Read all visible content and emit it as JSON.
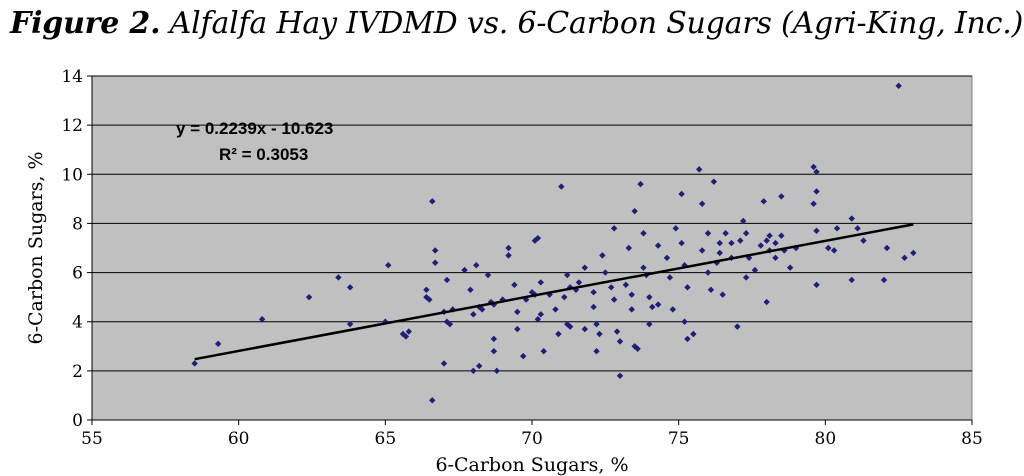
{
  "figure": {
    "title_lead": "Figure 2.",
    "title_rest": " Alfalfa Hay IVDMD vs. 6-Carbon Sugars (Agri-King, Inc.)"
  },
  "chart_data": {
    "type": "scatter",
    "xlabel": "6-Carbon Sugars, %",
    "ylabel": "6-Carbon Sugars, %",
    "xlim": [
      55,
      85
    ],
    "ylim": [
      0,
      14
    ],
    "xticks": [
      55,
      60,
      65,
      70,
      75,
      80,
      85
    ],
    "yticks": [
      0,
      2,
      4,
      6,
      8,
      10,
      12,
      14
    ],
    "grid": "horizontal",
    "background": "#c0c0c0",
    "marker_color": "#1f1f7a",
    "trendline": {
      "equation": "y = 0.2239x - 10.623",
      "r_squared": "R² = 0.3053",
      "slope": 0.2239,
      "intercept": -10.623,
      "x_range": [
        58.5,
        83
      ]
    },
    "points": [
      [
        58.5,
        2.3
      ],
      [
        59.3,
        3.1
      ],
      [
        60.8,
        4.1
      ],
      [
        62.4,
        5.0
      ],
      [
        63.4,
        5.8
      ],
      [
        63.8,
        5.4
      ],
      [
        63.8,
        3.9
      ],
      [
        65.1,
        6.3
      ],
      [
        65,
        4.0
      ],
      [
        65.6,
        3.5
      ],
      [
        65.7,
        3.4
      ],
      [
        65.8,
        3.6
      ],
      [
        66.4,
        5.3
      ],
      [
        66.4,
        5.0
      ],
      [
        66.5,
        4.9
      ],
      [
        66.7,
        6.9
      ],
      [
        66.7,
        6.4
      ],
      [
        66.6,
        8.9
      ],
      [
        66.6,
        0.8
      ],
      [
        67,
        4.4
      ],
      [
        67.1,
        4.0
      ],
      [
        67.2,
        3.9
      ],
      [
        67.1,
        5.7
      ],
      [
        67,
        2.3
      ],
      [
        67.3,
        4.5
      ],
      [
        67.7,
        6.1
      ],
      [
        67.9,
        5.3
      ],
      [
        68.1,
        6.3
      ],
      [
        68.2,
        4.6
      ],
      [
        68.3,
        4.5
      ],
      [
        68,
        4.3
      ],
      [
        68,
        2.0
      ],
      [
        68.2,
        2.2
      ],
      [
        68.5,
        5.9
      ],
      [
        68.6,
        4.8
      ],
      [
        68.7,
        4.7
      ],
      [
        68.7,
        3.3
      ],
      [
        68.7,
        2.8
      ],
      [
        68.8,
        2.0
      ],
      [
        69,
        4.9
      ],
      [
        69.2,
        7.0
      ],
      [
        69.2,
        6.7
      ],
      [
        69.4,
        5.5
      ],
      [
        69.5,
        4.4
      ],
      [
        69.5,
        3.7
      ],
      [
        69.7,
        2.6
      ],
      [
        69.8,
        4.9
      ],
      [
        70,
        5.2
      ],
      [
        70.1,
        5.1
      ],
      [
        70.1,
        7.3
      ],
      [
        70.2,
        7.4
      ],
      [
        70.3,
        5.6
      ],
      [
        70.3,
        4.3
      ],
      [
        70.2,
        4.1
      ],
      [
        70.4,
        2.8
      ],
      [
        70.6,
        5.1
      ],
      [
        70.8,
        4.5
      ],
      [
        70.9,
        3.5
      ],
      [
        71,
        9.5
      ],
      [
        71.1,
        5.0
      ],
      [
        71.2,
        3.9
      ],
      [
        71.3,
        3.8
      ],
      [
        71.2,
        5.9
      ],
      [
        71.3,
        5.4
      ],
      [
        71.5,
        5.3
      ],
      [
        71.6,
        5.6
      ],
      [
        71.8,
        3.7
      ],
      [
        71.8,
        6.2
      ],
      [
        72.1,
        5.2
      ],
      [
        72.1,
        4.6
      ],
      [
        72.2,
        3.9
      ],
      [
        72.3,
        3.5
      ],
      [
        72.2,
        2.8
      ],
      [
        72.4,
        6.7
      ],
      [
        72.5,
        6.0
      ],
      [
        72.7,
        5.4
      ],
      [
        72.8,
        7.8
      ],
      [
        72.8,
        4.9
      ],
      [
        72.9,
        3.6
      ],
      [
        73,
        3.2
      ],
      [
        73,
        1.8
      ],
      [
        73.2,
        5.5
      ],
      [
        73.3,
        7.0
      ],
      [
        73.4,
        5.1
      ],
      [
        73.4,
        4.5
      ],
      [
        73.5,
        8.5
      ],
      [
        73.5,
        3.0
      ],
      [
        73.6,
        2.9
      ],
      [
        73.7,
        9.6
      ],
      [
        73.8,
        7.6
      ],
      [
        73.8,
        6.2
      ],
      [
        73.9,
        5.9
      ],
      [
        74,
        5.0
      ],
      [
        74.1,
        4.6
      ],
      [
        74,
        3.9
      ],
      [
        74.3,
        7.1
      ],
      [
        74.3,
        4.7
      ],
      [
        74.6,
        6.6
      ],
      [
        74.7,
        5.8
      ],
      [
        74.8,
        4.5
      ],
      [
        74.9,
        7.8
      ],
      [
        75.1,
        9.2
      ],
      [
        75.1,
        7.2
      ],
      [
        75.2,
        6.3
      ],
      [
        75.3,
        5.4
      ],
      [
        75.2,
        4.0
      ],
      [
        75.3,
        3.3
      ],
      [
        75.5,
        3.5
      ],
      [
        75.7,
        10.2
      ],
      [
        75.8,
        8.8
      ],
      [
        75.8,
        6.9
      ],
      [
        76,
        7.6
      ],
      [
        76,
        6.0
      ],
      [
        76.1,
        5.3
      ],
      [
        76.2,
        9.7
      ],
      [
        76.4,
        7.2
      ],
      [
        76.4,
        6.8
      ],
      [
        76.3,
        6.4
      ],
      [
        76.5,
        5.1
      ],
      [
        76.6,
        7.6
      ],
      [
        76.8,
        7.2
      ],
      [
        76.8,
        6.6
      ],
      [
        77,
        3.8
      ],
      [
        77.1,
        7.3
      ],
      [
        77.2,
        8.1
      ],
      [
        77.3,
        7.6
      ],
      [
        77.4,
        6.6
      ],
      [
        77.3,
        5.8
      ],
      [
        77.6,
        6.1
      ],
      [
        77.8,
        7.1
      ],
      [
        77.9,
        8.9
      ],
      [
        78,
        7.3
      ],
      [
        78.1,
        7.5
      ],
      [
        78.1,
        6.9
      ],
      [
        78,
        4.8
      ],
      [
        78.3,
        7.2
      ],
      [
        78.3,
        6.6
      ],
      [
        78.5,
        9.1
      ],
      [
        78.5,
        7.5
      ],
      [
        78.6,
        6.9
      ],
      [
        78.8,
        6.2
      ],
      [
        79,
        7.0
      ],
      [
        79.6,
        8.8
      ],
      [
        79.6,
        10.3
      ],
      [
        79.7,
        10.1
      ],
      [
        79.7,
        9.3
      ],
      [
        79.7,
        7.7
      ],
      [
        79.7,
        5.5
      ],
      [
        80.1,
        7.0
      ],
      [
        80.3,
        6.9
      ],
      [
        80.4,
        7.8
      ],
      [
        80.9,
        8.2
      ],
      [
        80.9,
        5.7
      ],
      [
        81.1,
        7.8
      ],
      [
        81.3,
        7.3
      ],
      [
        82,
        5.7
      ],
      [
        82.1,
        7.0
      ],
      [
        82.5,
        13.6
      ],
      [
        82.7,
        6.6
      ],
      [
        83,
        6.8
      ]
    ]
  }
}
